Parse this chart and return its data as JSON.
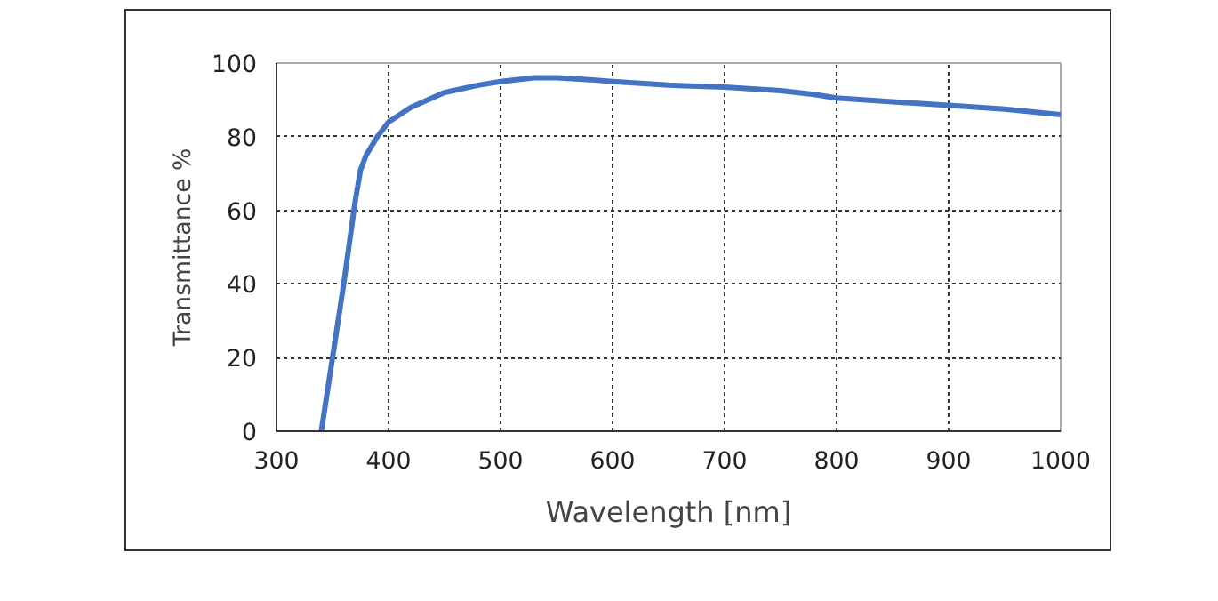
{
  "chart_data": {
    "type": "line",
    "xlabel": "Wavelength [nm]",
    "ylabel": "Transmittance %",
    "x": [
      340,
      350,
      360,
      370,
      375,
      380,
      390,
      400,
      420,
      450,
      480,
      500,
      530,
      550,
      580,
      600,
      650,
      700,
      750,
      780,
      800,
      850,
      900,
      950,
      1000
    ],
    "series": [
      {
        "color": "#4472c4",
        "values": [
          0,
          20,
          40,
          62,
          71,
          75,
          80,
          84,
          88,
          92,
          94,
          95,
          96,
          96,
          95.5,
          95,
          94,
          93.5,
          92.5,
          91.5,
          90.5,
          89.5,
          88.5,
          87.5,
          86
        ]
      }
    ],
    "xlim": [
      300,
      1000
    ],
    "ylim": [
      0,
      100
    ],
    "xticks": [
      300,
      400,
      500,
      600,
      700,
      800,
      900,
      1000
    ],
    "yticks": [
      0,
      20,
      40,
      60,
      80,
      100
    ],
    "grid": true,
    "marker": "none",
    "line_style": "solid"
  }
}
